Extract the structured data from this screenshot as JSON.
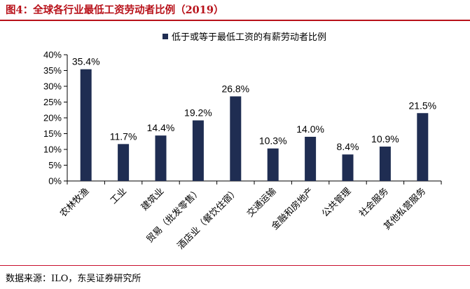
{
  "figure": {
    "title": "图4：全球各行业最低工资劳动者比例（2019）",
    "source": "数据来源：ILO，东吴证券研究所"
  },
  "colors": {
    "bar": "#1f2d52",
    "title": "#b8121a",
    "axis": "#000000"
  },
  "chart_data": {
    "type": "bar",
    "title": "",
    "xlabel": "",
    "ylabel": "",
    "ylim": [
      0,
      40
    ],
    "yticks": [
      "0%",
      "5%",
      "10%",
      "15%",
      "20%",
      "25%",
      "30%",
      "35%",
      "40%"
    ],
    "legend": {
      "position": "top",
      "entries": [
        "低于或等于最低工资的有薪劳动者比例"
      ]
    },
    "grid": false,
    "categories": [
      "农林牧渔",
      "工业",
      "建筑业",
      "贸易（批发零售）",
      "酒店业（餐饮住宿）",
      "交通运输",
      "金融和房地产",
      "公共管理",
      "社会服务",
      "其他私营服务"
    ],
    "series": [
      {
        "name": "低于或等于最低工资的有薪劳动者比例",
        "values": [
          35.4,
          11.7,
          14.4,
          19.2,
          26.8,
          10.3,
          14.0,
          8.4,
          10.9,
          21.5
        ],
        "labels": [
          "35.4%",
          "11.7%",
          "14.4%",
          "19.2%",
          "26.8%",
          "10.3%",
          "14.0%",
          "8.4%",
          "10.9%",
          "21.5%"
        ]
      }
    ]
  }
}
